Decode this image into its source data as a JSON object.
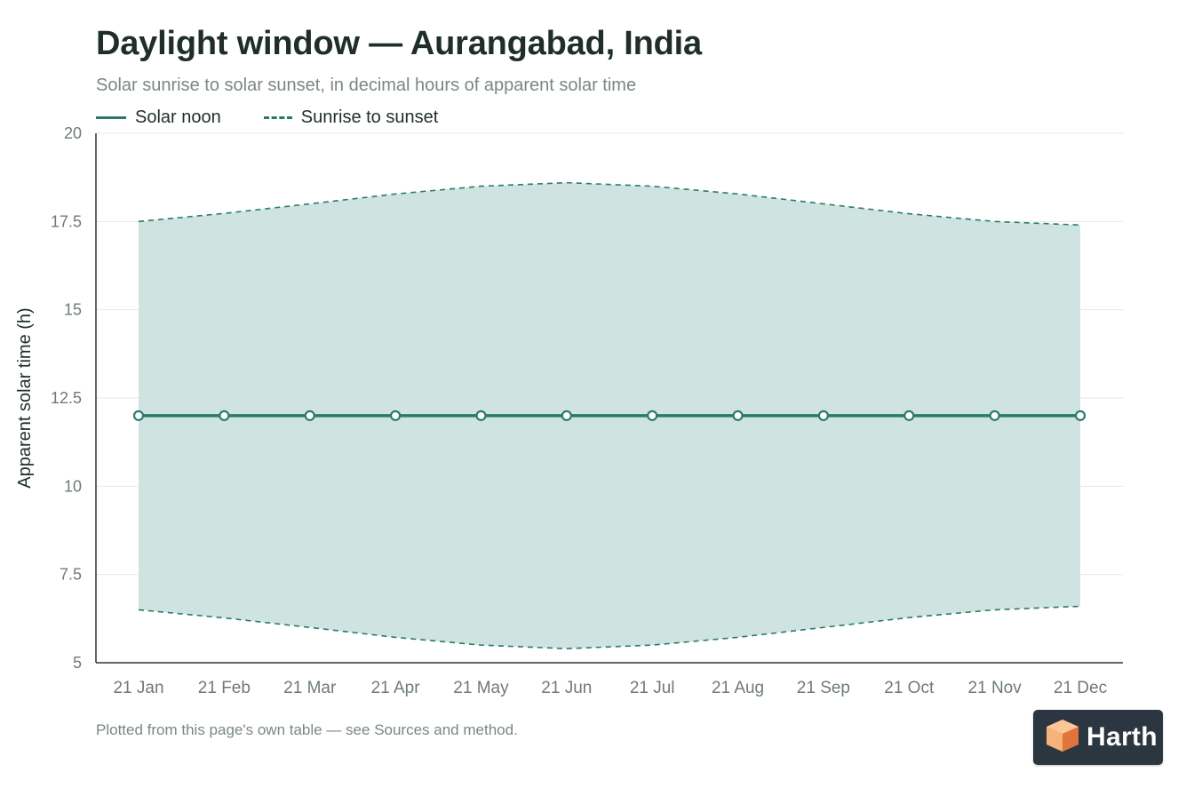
{
  "header": {
    "title": "Daylight window — Aurangabad, India",
    "subtitle": "Solar sunrise to solar sunset, in decimal hours of apparent solar time"
  },
  "legend": {
    "noon_label": "Solar noon",
    "range_label": "Sunrise to sunset"
  },
  "footnote": "Plotted from this page's own table — see Sources and method.",
  "brand": {
    "name": "Harth",
    "icon": "cube-logo-icon"
  },
  "colors": {
    "line": "#2a7a6c",
    "band_fill": "#cfe4e1",
    "axis": "#333333",
    "grid": "#e6e8e7",
    "tick_text": "#6f7b78",
    "logo_light": "#f7b27a",
    "logo_dark": "#e9874a"
  },
  "chart_data": {
    "type": "area",
    "categories": [
      "21 Jan",
      "21 Feb",
      "21 Mar",
      "21 Apr",
      "21 May",
      "21 Jun",
      "21 Jul",
      "21 Aug",
      "21 Sep",
      "21 Oct",
      "21 Nov",
      "21 Dec"
    ],
    "series": [
      {
        "name": "Solar noon",
        "style": "line-with-markers",
        "values": [
          12,
          12,
          12,
          12,
          12,
          12,
          12,
          12,
          12,
          12,
          12,
          12
        ]
      },
      {
        "name": "Sunrise to sunset",
        "style": "dashed-band",
        "low": [
          6.5,
          6.27,
          6.0,
          5.72,
          5.5,
          5.4,
          5.5,
          5.72,
          6.0,
          6.28,
          6.5,
          6.6
        ],
        "high": [
          17.5,
          17.73,
          18.0,
          18.28,
          18.5,
          18.6,
          18.5,
          18.28,
          18.0,
          17.72,
          17.5,
          17.4
        ]
      }
    ],
    "ylabel": "Apparent solar time (h)",
    "xlabel": "",
    "ylim": [
      5,
      20
    ],
    "yticks": [
      5,
      7.5,
      10,
      12.5,
      15,
      17.5,
      20
    ],
    "ytick_labels": [
      "5",
      "7.5",
      "10",
      "12.5",
      "15",
      "17.5",
      "20"
    ],
    "grid": true,
    "legend_position": "top-left"
  }
}
